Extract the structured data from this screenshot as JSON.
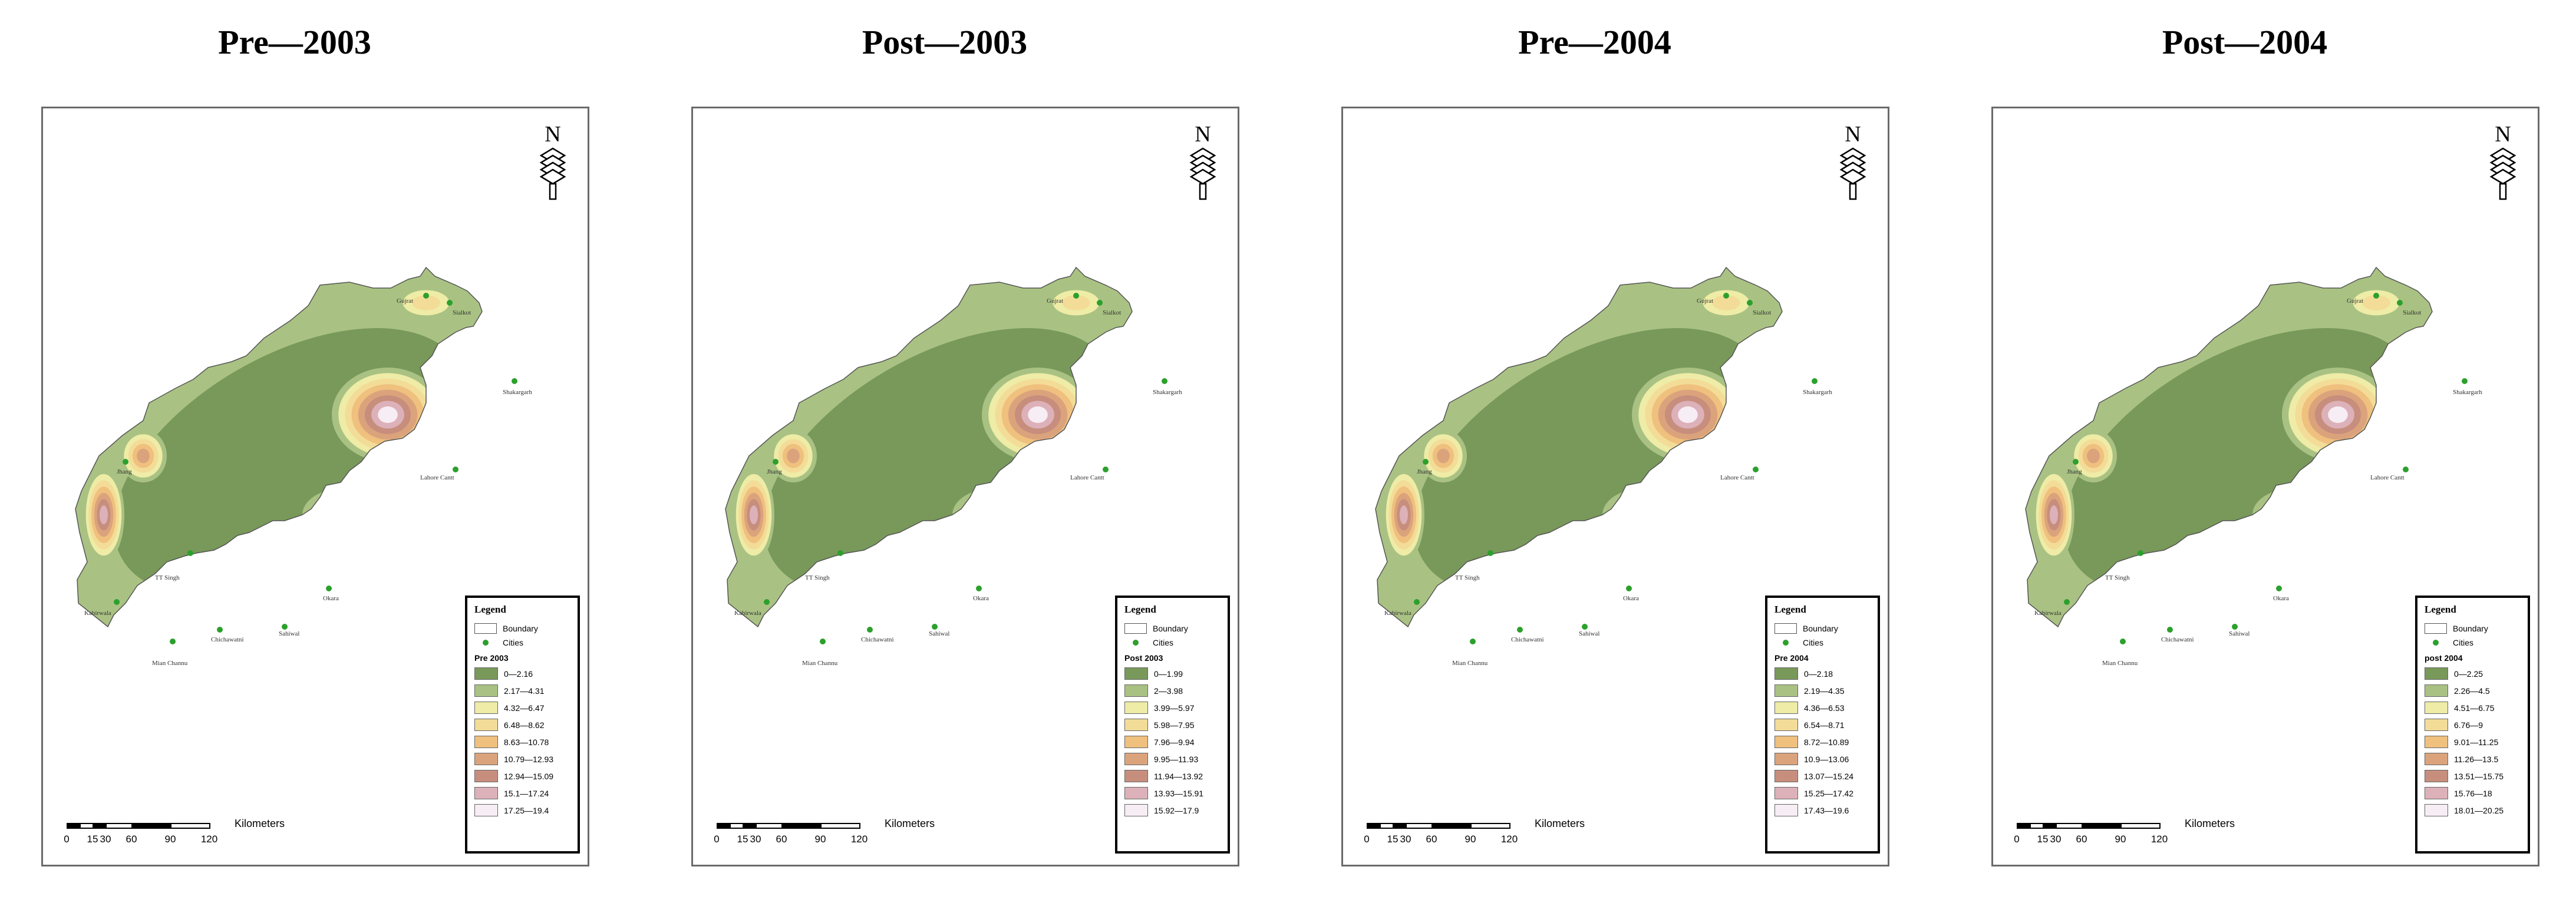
{
  "panels": [
    {
      "title": "Pre—2003",
      "legend_field": "Pre 2003",
      "classes": [
        "0—2.16",
        "2.17—4.31",
        "4.32—6.47",
        "6.48—8.62",
        "8.63—10.78",
        "10.79—12.93",
        "12.94—15.09",
        "15.1—17.24",
        "17.25—19.4"
      ]
    },
    {
      "title": "Post—2003",
      "legend_field": "Post 2003",
      "classes": [
        "0—1.99",
        "2—3.98",
        "3.99—5.97",
        "5.98—7.95",
        "7.96—9.94",
        "9.95—11.93",
        "11.94—13.92",
        "13.93—15.91",
        "15.92—17.9"
      ]
    },
    {
      "title": "Pre—2004",
      "legend_field": "Pre 2004",
      "classes": [
        "0—2.18",
        "2.19—4.35",
        "4.36—6.53",
        "6.54—8.71",
        "8.72—10.89",
        "10.9—13.06",
        "13.07—15.24",
        "15.25—17.42",
        "17.43—19.6"
      ]
    },
    {
      "title": "Post—2004",
      "legend_field": "post 2004",
      "classes": [
        "0—2.25",
        "2.26—4.5",
        "4.51—6.75",
        "6.76—9",
        "9.01—11.25",
        "11.26—13.5",
        "13.51—15.75",
        "15.76—18",
        "18.01—20.25"
      ]
    }
  ],
  "legend": {
    "title": "Legend",
    "boundary_label": "Boundary",
    "cities_label": "Cities"
  },
  "scale": {
    "unit": "Kilometers",
    "ticks": [
      "0",
      "15",
      "30",
      "60",
      "90",
      "120"
    ]
  },
  "north_label": "N",
  "cities": [
    "Gujrat",
    "Sialkot",
    "Shakargarh",
    "Lahore Cantt",
    "Okara",
    "Sahiwal",
    "Chichawatni",
    "Mian Channu",
    "Kabirwala",
    "TT Singh",
    "Jhang"
  ],
  "class_colors": [
    "#78995a",
    "#a9c283",
    "#eeeca6",
    "#f3dc97",
    "#efc07e",
    "#dba37c",
    "#c78e7d",
    "#ddb1b9",
    "#f7edf4"
  ],
  "boundary_color": "#555555",
  "city_color": "#2ca02c"
}
